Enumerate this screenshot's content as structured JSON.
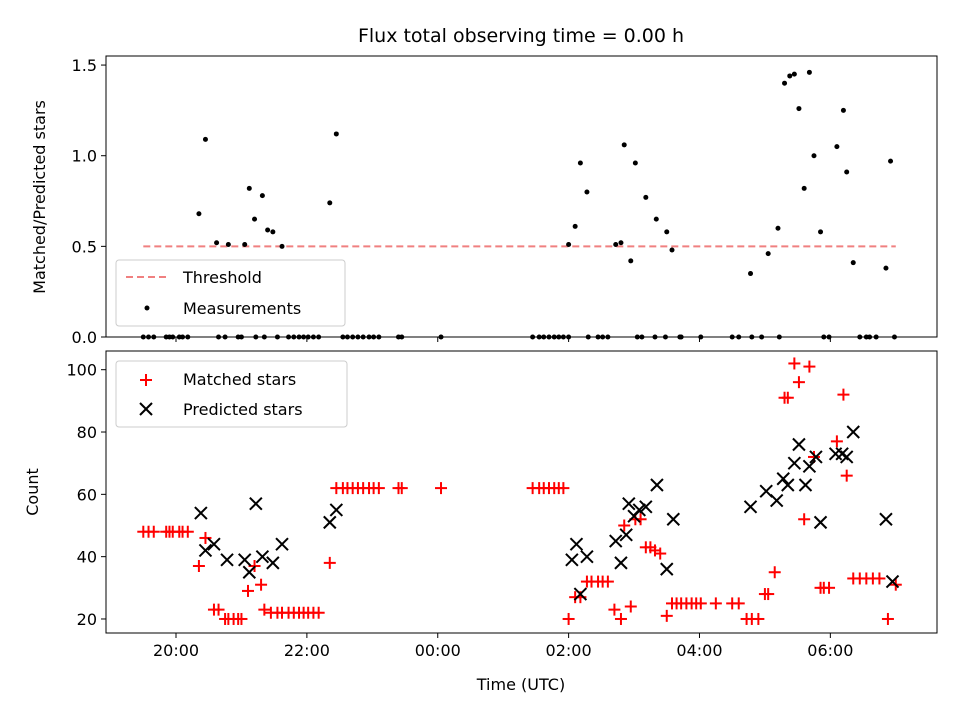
{
  "chart_data": {
    "type": "scatter",
    "title": "Flux total observing time = 0.00 h",
    "xlabel": "Time (UTC)",
    "xticks": [
      {
        "hours": 20,
        "label": "20:00"
      },
      {
        "hours": 22,
        "label": "22:00"
      },
      {
        "hours": 24,
        "label": "00:00"
      },
      {
        "hours": 26,
        "label": "02:00"
      },
      {
        "hours": 28,
        "label": "04:00"
      },
      {
        "hours": 30,
        "label": "06:00"
      }
    ],
    "xlim_hours": [
      18.93,
      31.63
    ],
    "panels": [
      {
        "id": "ratio",
        "ylabel": "Matched/Predicted stars",
        "ylim": [
          0,
          1.55
        ],
        "yticks": [
          {
            "value": 0.0,
            "label": "0.0"
          },
          {
            "value": 0.5,
            "label": "0.5"
          },
          {
            "value": 1.0,
            "label": "1.0"
          },
          {
            "value": 1.5,
            "label": "1.5"
          }
        ],
        "threshold": {
          "value": 0.5,
          "x_range_hours": [
            19.5,
            31.0
          ],
          "color": "#f08080"
        },
        "legend": {
          "position": "lower-left",
          "entries": [
            "Threshold",
            "Measurements"
          ]
        },
        "measurements": [
          [
            19.5,
            0
          ],
          [
            19.58,
            0
          ],
          [
            19.66,
            0
          ],
          [
            19.85,
            0
          ],
          [
            19.9,
            0
          ],
          [
            19.95,
            0
          ],
          [
            20.05,
            0
          ],
          [
            20.1,
            0
          ],
          [
            20.18,
            0
          ],
          [
            20.35,
            0.68
          ],
          [
            20.45,
            1.09
          ],
          [
            20.62,
            0.52
          ],
          [
            20.65,
            0
          ],
          [
            20.75,
            0
          ],
          [
            20.8,
            0.51
          ],
          [
            20.95,
            0
          ],
          [
            21.0,
            0
          ],
          [
            21.05,
            0.51
          ],
          [
            21.12,
            0.82
          ],
          [
            21.2,
            0.65
          ],
          [
            21.22,
            0
          ],
          [
            21.32,
            0.78
          ],
          [
            21.35,
            0
          ],
          [
            21.4,
            0.59
          ],
          [
            21.48,
            0.58
          ],
          [
            21.55,
            0
          ],
          [
            21.62,
            0.5
          ],
          [
            21.72,
            0
          ],
          [
            21.8,
            0
          ],
          [
            21.88,
            0
          ],
          [
            21.95,
            0
          ],
          [
            22.02,
            0
          ],
          [
            22.1,
            0
          ],
          [
            22.18,
            0
          ],
          [
            22.35,
            0.74
          ],
          [
            22.45,
            1.12
          ],
          [
            22.55,
            0
          ],
          [
            22.62,
            0
          ],
          [
            22.7,
            0
          ],
          [
            22.78,
            0
          ],
          [
            22.86,
            0
          ],
          [
            22.95,
            0
          ],
          [
            23.02,
            0
          ],
          [
            23.1,
            0
          ],
          [
            23.4,
            0
          ],
          [
            23.45,
            0
          ],
          [
            24.05,
            0
          ],
          [
            25.45,
            0
          ],
          [
            25.55,
            0
          ],
          [
            25.62,
            0
          ],
          [
            25.7,
            0
          ],
          [
            25.78,
            0
          ],
          [
            25.85,
            0
          ],
          [
            25.92,
            0
          ],
          [
            26.0,
            0
          ],
          [
            26.0,
            0.51
          ],
          [
            26.1,
            0.61
          ],
          [
            26.18,
            0.96
          ],
          [
            26.28,
            0.8
          ],
          [
            26.3,
            0
          ],
          [
            26.45,
            0
          ],
          [
            26.52,
            0
          ],
          [
            26.6,
            0
          ],
          [
            26.72,
            0.51
          ],
          [
            26.8,
            0.52
          ],
          [
            26.85,
            1.06
          ],
          [
            26.95,
            0.42
          ],
          [
            27.02,
            0.96
          ],
          [
            27.05,
            0
          ],
          [
            27.12,
            0
          ],
          [
            27.18,
            0.77
          ],
          [
            27.32,
            0
          ],
          [
            27.34,
            0.65
          ],
          [
            27.48,
            0
          ],
          [
            27.5,
            0.58
          ],
          [
            27.58,
            0.48
          ],
          [
            27.7,
            0
          ],
          [
            27.72,
            0
          ],
          [
            28.02,
            0
          ],
          [
            28.5,
            0
          ],
          [
            28.6,
            0
          ],
          [
            28.78,
            0.35
          ],
          [
            28.8,
            0
          ],
          [
            28.95,
            0
          ],
          [
            29.05,
            0.46
          ],
          [
            29.2,
            0.6
          ],
          [
            29.22,
            0
          ],
          [
            29.3,
            1.4
          ],
          [
            29.38,
            1.44
          ],
          [
            29.45,
            1.45
          ],
          [
            29.52,
            1.26
          ],
          [
            29.6,
            0.82
          ],
          [
            29.68,
            1.46
          ],
          [
            29.75,
            1.0
          ],
          [
            29.85,
            0.58
          ],
          [
            29.9,
            0
          ],
          [
            29.98,
            0
          ],
          [
            30.1,
            1.05
          ],
          [
            30.2,
            1.25
          ],
          [
            30.25,
            0.91
          ],
          [
            30.35,
            0.41
          ],
          [
            30.45,
            0
          ],
          [
            30.55,
            0
          ],
          [
            30.6,
            0
          ],
          [
            30.7,
            0
          ],
          [
            30.85,
            0.38
          ],
          [
            30.92,
            0.97
          ],
          [
            30.98,
            0
          ]
        ]
      },
      {
        "id": "counts",
        "ylabel": "Count",
        "ylim": [
          15.5,
          106
        ],
        "yticks": [
          {
            "value": 20,
            "label": "20"
          },
          {
            "value": 40,
            "label": "40"
          },
          {
            "value": 60,
            "label": "60"
          },
          {
            "value": 80,
            "label": "80"
          },
          {
            "value": 100,
            "label": "100"
          }
        ],
        "legend": {
          "position": "upper-left",
          "entries": [
            "Matched stars",
            "Predicted stars"
          ]
        },
        "matched_color": "#ff0000",
        "predicted_color": "#000000",
        "matched": [
          [
            19.5,
            48
          ],
          [
            19.58,
            48
          ],
          [
            19.66,
            48
          ],
          [
            19.85,
            48
          ],
          [
            19.9,
            48
          ],
          [
            19.95,
            48
          ],
          [
            20.05,
            48
          ],
          [
            20.1,
            48
          ],
          [
            20.18,
            48
          ],
          [
            20.35,
            37
          ],
          [
            20.45,
            46
          ],
          [
            20.58,
            23
          ],
          [
            20.65,
            23
          ],
          [
            20.75,
            20
          ],
          [
            20.8,
            20
          ],
          [
            20.88,
            20
          ],
          [
            20.95,
            20
          ],
          [
            21.0,
            20
          ],
          [
            21.1,
            29
          ],
          [
            21.2,
            37
          ],
          [
            21.3,
            31
          ],
          [
            21.35,
            23
          ],
          [
            21.45,
            22
          ],
          [
            21.55,
            22
          ],
          [
            21.62,
            22
          ],
          [
            21.72,
            22
          ],
          [
            21.8,
            22
          ],
          [
            21.88,
            22
          ],
          [
            21.95,
            22
          ],
          [
            22.02,
            22
          ],
          [
            22.1,
            22
          ],
          [
            22.18,
            22
          ],
          [
            22.35,
            38
          ],
          [
            22.45,
            62
          ],
          [
            22.55,
            62
          ],
          [
            22.62,
            62
          ],
          [
            22.7,
            62
          ],
          [
            22.78,
            62
          ],
          [
            22.86,
            62
          ],
          [
            22.95,
            62
          ],
          [
            23.02,
            62
          ],
          [
            23.1,
            62
          ],
          [
            23.4,
            62
          ],
          [
            23.45,
            62
          ],
          [
            24.05,
            62
          ],
          [
            25.45,
            62
          ],
          [
            25.55,
            62
          ],
          [
            25.62,
            62
          ],
          [
            25.7,
            62
          ],
          [
            25.78,
            62
          ],
          [
            25.85,
            62
          ],
          [
            25.92,
            62
          ],
          [
            26.0,
            20
          ],
          [
            26.1,
            27
          ],
          [
            26.18,
            27
          ],
          [
            26.28,
            32
          ],
          [
            26.35,
            32
          ],
          [
            26.45,
            32
          ],
          [
            26.52,
            32
          ],
          [
            26.6,
            32
          ],
          [
            26.7,
            23
          ],
          [
            26.8,
            20
          ],
          [
            26.85,
            50
          ],
          [
            26.95,
            24
          ],
          [
            27.02,
            52
          ],
          [
            27.1,
            52
          ],
          [
            27.18,
            43
          ],
          [
            27.25,
            43
          ],
          [
            27.32,
            42
          ],
          [
            27.4,
            41
          ],
          [
            27.5,
            21
          ],
          [
            27.58,
            25
          ],
          [
            27.65,
            25
          ],
          [
            27.72,
            25
          ],
          [
            27.8,
            25
          ],
          [
            27.88,
            25
          ],
          [
            27.95,
            25
          ],
          [
            28.02,
            25
          ],
          [
            28.25,
            25
          ],
          [
            28.5,
            25
          ],
          [
            28.6,
            25
          ],
          [
            28.72,
            20
          ],
          [
            28.8,
            20
          ],
          [
            28.9,
            20
          ],
          [
            29.0,
            28
          ],
          [
            29.05,
            28
          ],
          [
            29.15,
            35
          ],
          [
            29.3,
            91
          ],
          [
            29.35,
            91
          ],
          [
            29.45,
            102
          ],
          [
            29.52,
            96
          ],
          [
            29.6,
            52
          ],
          [
            29.68,
            101
          ],
          [
            29.75,
            72
          ],
          [
            29.85,
            30
          ],
          [
            29.9,
            30
          ],
          [
            29.98,
            30
          ],
          [
            30.1,
            77
          ],
          [
            30.2,
            92
          ],
          [
            30.25,
            66
          ],
          [
            30.35,
            33
          ],
          [
            30.45,
            33
          ],
          [
            30.55,
            33
          ],
          [
            30.65,
            33
          ],
          [
            30.75,
            33
          ],
          [
            30.88,
            20
          ],
          [
            31.0,
            31
          ]
        ],
        "predicted": [
          [
            20.38,
            54
          ],
          [
            20.45,
            42
          ],
          [
            20.58,
            44
          ],
          [
            20.78,
            39
          ],
          [
            21.05,
            39
          ],
          [
            21.12,
            35
          ],
          [
            21.22,
            57
          ],
          [
            21.32,
            40
          ],
          [
            21.48,
            38
          ],
          [
            21.62,
            44
          ],
          [
            22.35,
            51
          ],
          [
            22.45,
            55
          ],
          [
            26.05,
            39
          ],
          [
            26.12,
            44
          ],
          [
            26.18,
            28
          ],
          [
            26.28,
            40
          ],
          [
            26.72,
            45
          ],
          [
            26.8,
            38
          ],
          [
            26.88,
            47
          ],
          [
            26.92,
            57
          ],
          [
            27.0,
            53
          ],
          [
            27.08,
            55
          ],
          [
            27.18,
            56
          ],
          [
            27.35,
            63
          ],
          [
            27.5,
            36
          ],
          [
            27.6,
            52
          ],
          [
            28.78,
            56
          ],
          [
            29.02,
            61
          ],
          [
            29.18,
            58
          ],
          [
            29.28,
            65
          ],
          [
            29.35,
            63
          ],
          [
            29.45,
            70
          ],
          [
            29.52,
            76
          ],
          [
            29.62,
            63
          ],
          [
            29.68,
            69
          ],
          [
            29.78,
            72
          ],
          [
            29.85,
            51
          ],
          [
            30.08,
            73
          ],
          [
            30.18,
            73
          ],
          [
            30.25,
            72
          ],
          [
            30.35,
            80
          ],
          [
            30.85,
            52
          ],
          [
            30.95,
            32
          ]
        ]
      }
    ]
  }
}
